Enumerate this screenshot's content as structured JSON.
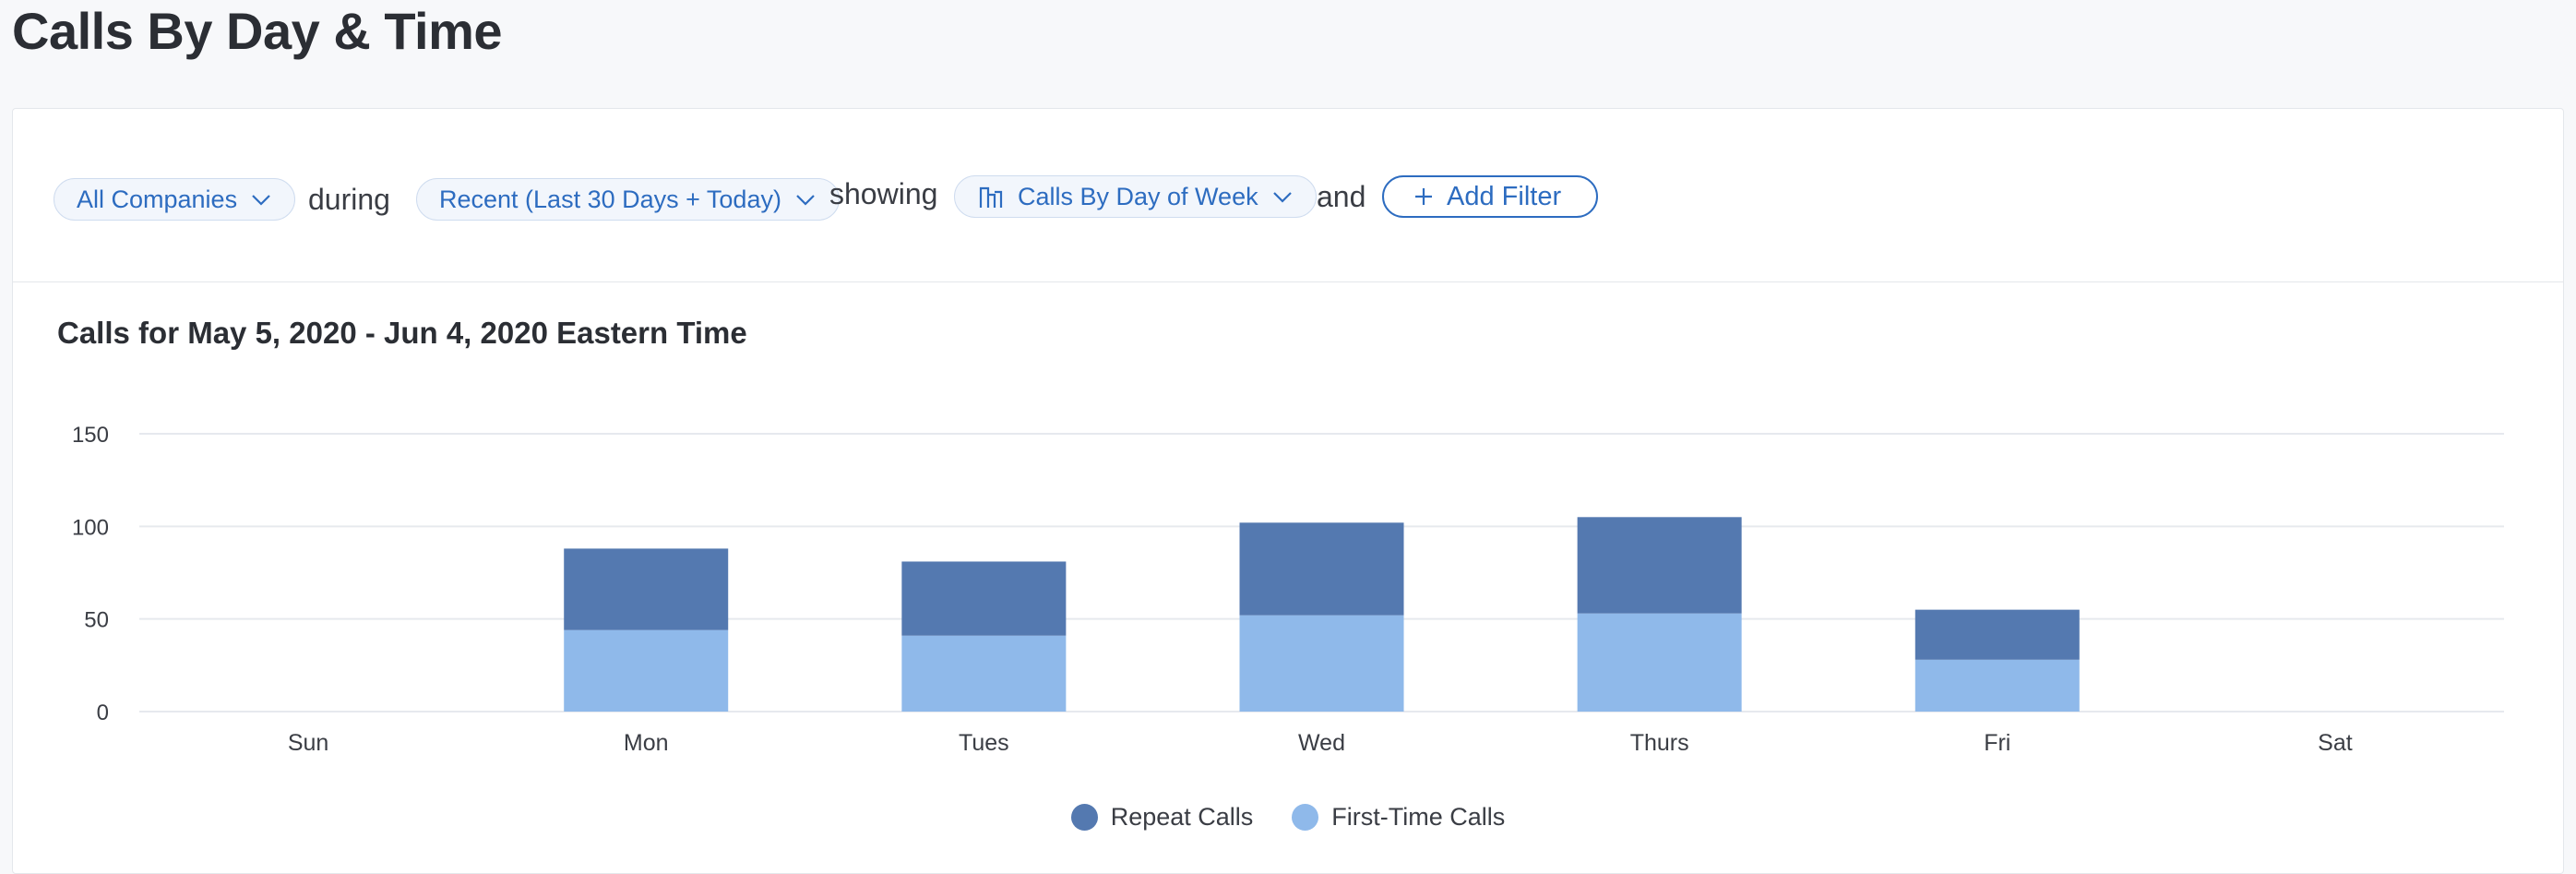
{
  "page": {
    "title": "Calls By Day & Time"
  },
  "filters": {
    "company": "All Companies",
    "during_label": "during",
    "range": "Recent (Last 30 Days + Today)",
    "showing_label": "showing",
    "view": "Calls By Day of Week",
    "and_label": "and",
    "add_filter": "Add Filter"
  },
  "icons": {
    "company_chevron": "chevron-down-icon",
    "range_chevron": "chevron-down-icon",
    "view_icon": "bar-chart-icon",
    "view_chevron": "chevron-down-icon",
    "add_icon": "plus-icon"
  },
  "colors": {
    "accent": "#2d6cc0",
    "repeat": "#5479b0",
    "first_time": "#8fb9ea",
    "grid": "#e6e9ee"
  },
  "chart_data": {
    "type": "bar",
    "stacked": true,
    "title": "Calls for May 5, 2020 - Jun 4, 2020 Eastern Time",
    "xlabel": "",
    "ylabel": "",
    "categories": [
      "Sun",
      "Mon",
      "Tues",
      "Wed",
      "Thurs",
      "Fri",
      "Sat"
    ],
    "ylim": [
      0,
      150
    ],
    "yticks": [
      0,
      50,
      100,
      150
    ],
    "grid": true,
    "legend_position": "bottom-center",
    "series": [
      {
        "name": "First-Time Calls",
        "color": "#8fb9ea",
        "values": [
          0,
          44,
          41,
          52,
          53,
          28,
          0
        ]
      },
      {
        "name": "Repeat Calls",
        "color": "#5479b0",
        "values": [
          0,
          44,
          40,
          50,
          52,
          27,
          0
        ]
      }
    ],
    "legend": [
      "Repeat Calls",
      "First-Time Calls"
    ]
  }
}
